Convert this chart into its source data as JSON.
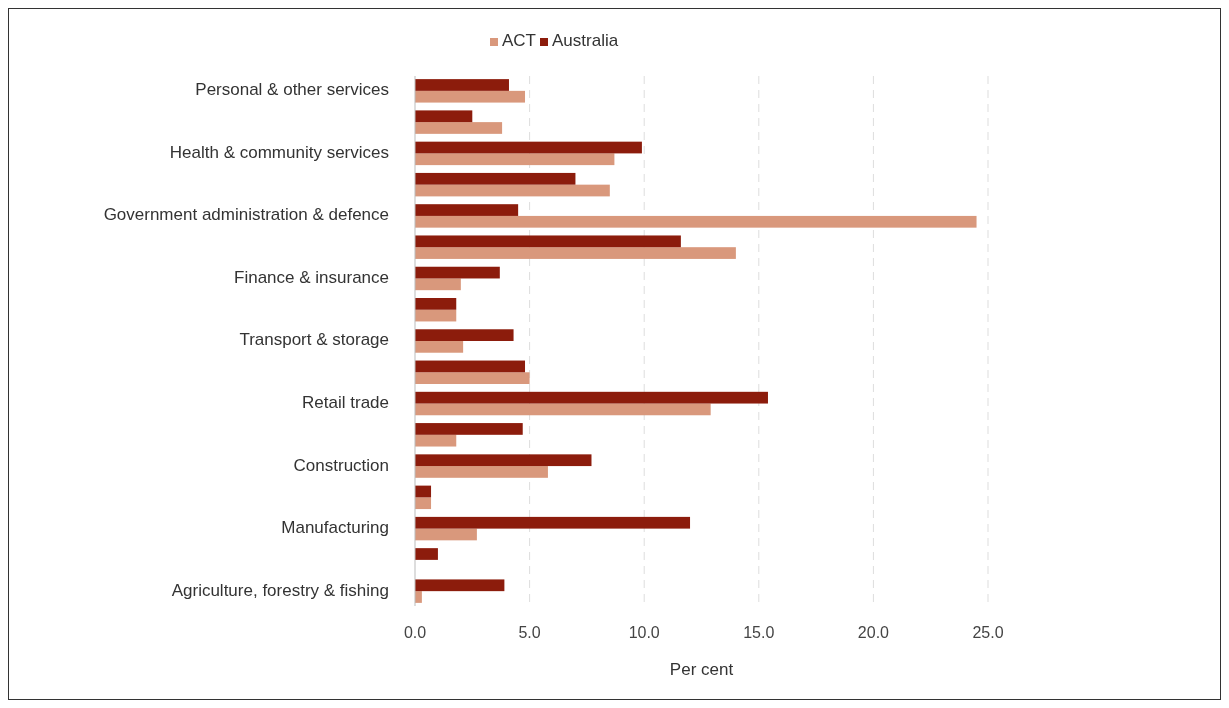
{
  "chart_data": {
    "type": "bar",
    "orientation": "horizontal",
    "xlabel": "Per cent",
    "legend": "top",
    "grid": "x",
    "categories": [
      "Personal & other services",
      null,
      "Health & community services",
      null,
      "Government administration & defence",
      null,
      "Finance & insurance",
      null,
      "Transport & storage",
      null,
      "Retail trade",
      null,
      "Construction",
      null,
      "Manufacturing",
      null,
      "Agriculture, forestry & fishing"
    ],
    "series": [
      {
        "name": "ACT",
        "color": "#d9987c",
        "values": [
          4.8,
          3.8,
          8.7,
          8.5,
          24.5,
          14.0,
          2.0,
          1.8,
          2.1,
          5.0,
          12.9,
          1.8,
          5.8,
          0.7,
          2.7,
          0.0,
          0.3
        ]
      },
      {
        "name": "Australia",
        "color": "#8c1c0c",
        "values": [
          4.1,
          2.5,
          9.9,
          7.0,
          4.5,
          11.6,
          3.7,
          1.8,
          4.3,
          4.8,
          15.4,
          4.7,
          7.7,
          0.7,
          12.0,
          1.0,
          3.9
        ]
      }
    ],
    "xlim": [
      0,
      25
    ],
    "xticks": [
      {
        "value": 0,
        "label": "0.0"
      },
      {
        "value": 5,
        "label": "5.0"
      },
      {
        "value": 10,
        "label": "10.0"
      },
      {
        "value": 15,
        "label": "15.0"
      },
      {
        "value": 20,
        "label": "20.0"
      },
      {
        "value": 25,
        "label": "25.0"
      }
    ]
  }
}
